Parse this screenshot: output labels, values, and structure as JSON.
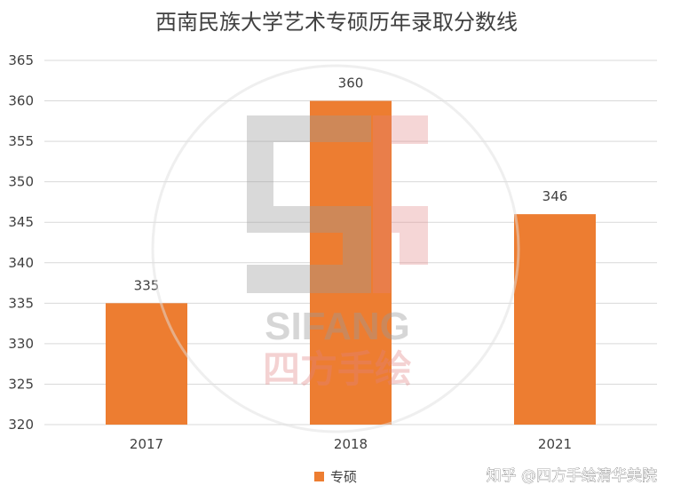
{
  "chart_data": {
    "type": "bar",
    "title": "西南民族大学艺术专硕历年录取分数线",
    "categories": [
      "2017",
      "2018",
      "2021"
    ],
    "series": [
      {
        "name": "专硕",
        "values": [
          335,
          360,
          346
        ]
      }
    ],
    "ylim": [
      320,
      365
    ],
    "yticks": [
      320,
      325,
      330,
      335,
      340,
      345,
      350,
      355,
      360,
      365
    ],
    "grid": true,
    "legend": "bottom",
    "data_labels": true,
    "colors": {
      "bar": "#ED7D31",
      "grid": "#D9D9D9",
      "text": "#404040"
    }
  },
  "watermark": {
    "logo_text": "SIFANG",
    "logo_subtitle": "四方手绘",
    "credit": "知乎 @四方手绘清华美院"
  }
}
